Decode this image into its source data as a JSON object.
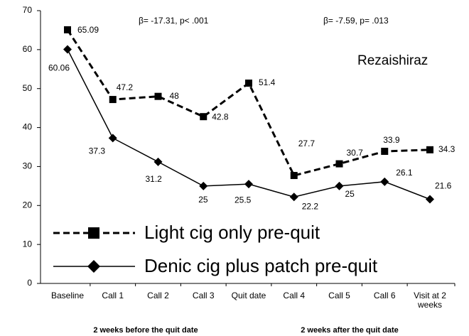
{
  "chart_data": {
    "type": "line",
    "categories": [
      "Baseline",
      "Call 1",
      "Call 2",
      "Call 3",
      "Quit date",
      "Call 4",
      "Call 5",
      "Call 6",
      "Visit at 2 weeks"
    ],
    "series": [
      {
        "name": "Light cig only pre-quit",
        "color": "#000000",
        "dashed": true,
        "marker": "square",
        "values": [
          65.09,
          47.2,
          48,
          42.8,
          51.4,
          27.7,
          30.7,
          33.9,
          34.3
        ]
      },
      {
        "name": "Denic cig plus patch pre-quit",
        "color": "#000000",
        "dashed": false,
        "marker": "diamond",
        "values": [
          60.06,
          37.3,
          31.2,
          25,
          25.5,
          22.2,
          25,
          26.1,
          21.6
        ]
      }
    ],
    "ylim": [
      0,
      70
    ],
    "yticks": [
      0,
      10,
      20,
      30,
      40,
      50,
      60,
      70
    ],
    "grid": false,
    "annotations": [
      "β= -17.31, p< .001",
      "β= -7.59, p= .013",
      "Rezaishiraz"
    ],
    "x_group_labels": [
      "2 weeks before the quit date",
      "2 weeks after the quit date"
    ]
  }
}
